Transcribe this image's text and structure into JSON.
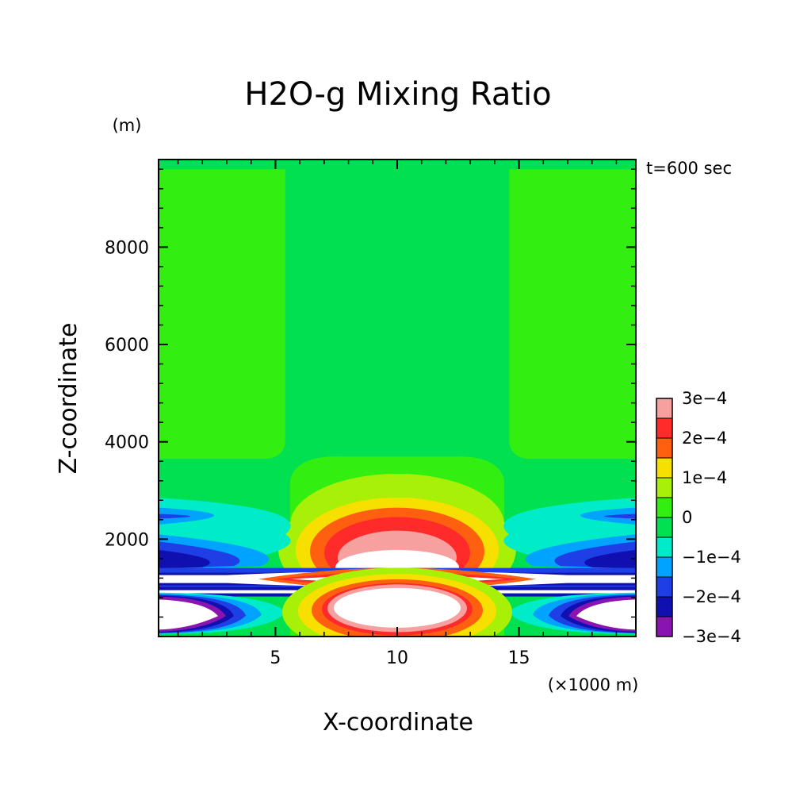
{
  "chart_data": {
    "type": "heatmap",
    "subtype": "filled-contour",
    "title": "H2O-g Mixing Ratio",
    "annotation": "t=600 sec",
    "xlabel": "X-coordinate",
    "ylabel": "Z-coordinate",
    "x_unit": "(×1000 m)",
    "y_unit": "(m)",
    "xlim": [
      0.2,
      19.8
    ],
    "ylim": [
      0,
      9800
    ],
    "x_ticks": [
      {
        "value": 5,
        "label": "5"
      },
      {
        "value": 10,
        "label": "10"
      },
      {
        "value": 15,
        "label": "15"
      }
    ],
    "y_ticks": [
      {
        "value": 2000,
        "label": "2000"
      },
      {
        "value": 4000,
        "label": "4000"
      },
      {
        "value": 6000,
        "label": "6000"
      },
      {
        "value": 8000,
        "label": "8000"
      }
    ],
    "colorbar": {
      "range": [
        -0.0003,
        0.0003
      ],
      "levels": [
        {
          "value": -0.0003,
          "color": "#8a14b0"
        },
        {
          "value": -0.00025,
          "color": "#1010b0"
        },
        {
          "value": -0.0002,
          "color": "#1f3fe6"
        },
        {
          "value": -0.00015,
          "color": "#00a3ff"
        },
        {
          "value": -0.0001,
          "color": "#00ecc8"
        },
        {
          "value": -5e-05,
          "color": "#00e050"
        },
        {
          "value": 0,
          "color": "#33ee11"
        },
        {
          "value": 5e-05,
          "color": "#a8f008"
        },
        {
          "value": 0.0001,
          "color": "#f7e000"
        },
        {
          "value": 0.00015,
          "color": "#ff6010"
        },
        {
          "value": 0.0002,
          "color": "#ff2a2a"
        },
        {
          "value": 0.00025,
          "color": "#f7a0a0"
        }
      ],
      "labels": [
        {
          "value": 0.0003,
          "label": "3e−4"
        },
        {
          "value": 0.0002,
          "label": "2e−4"
        },
        {
          "value": 0.0001,
          "label": "1e−4"
        },
        {
          "value": 0,
          "label": "0"
        },
        {
          "value": -0.0001,
          "label": "−1e−4"
        },
        {
          "value": -0.0002,
          "label": "−2e−4"
        },
        {
          "value": -0.0003,
          "label": "−3e−4"
        }
      ],
      "out_of_range_color": "#ffffff"
    }
  }
}
